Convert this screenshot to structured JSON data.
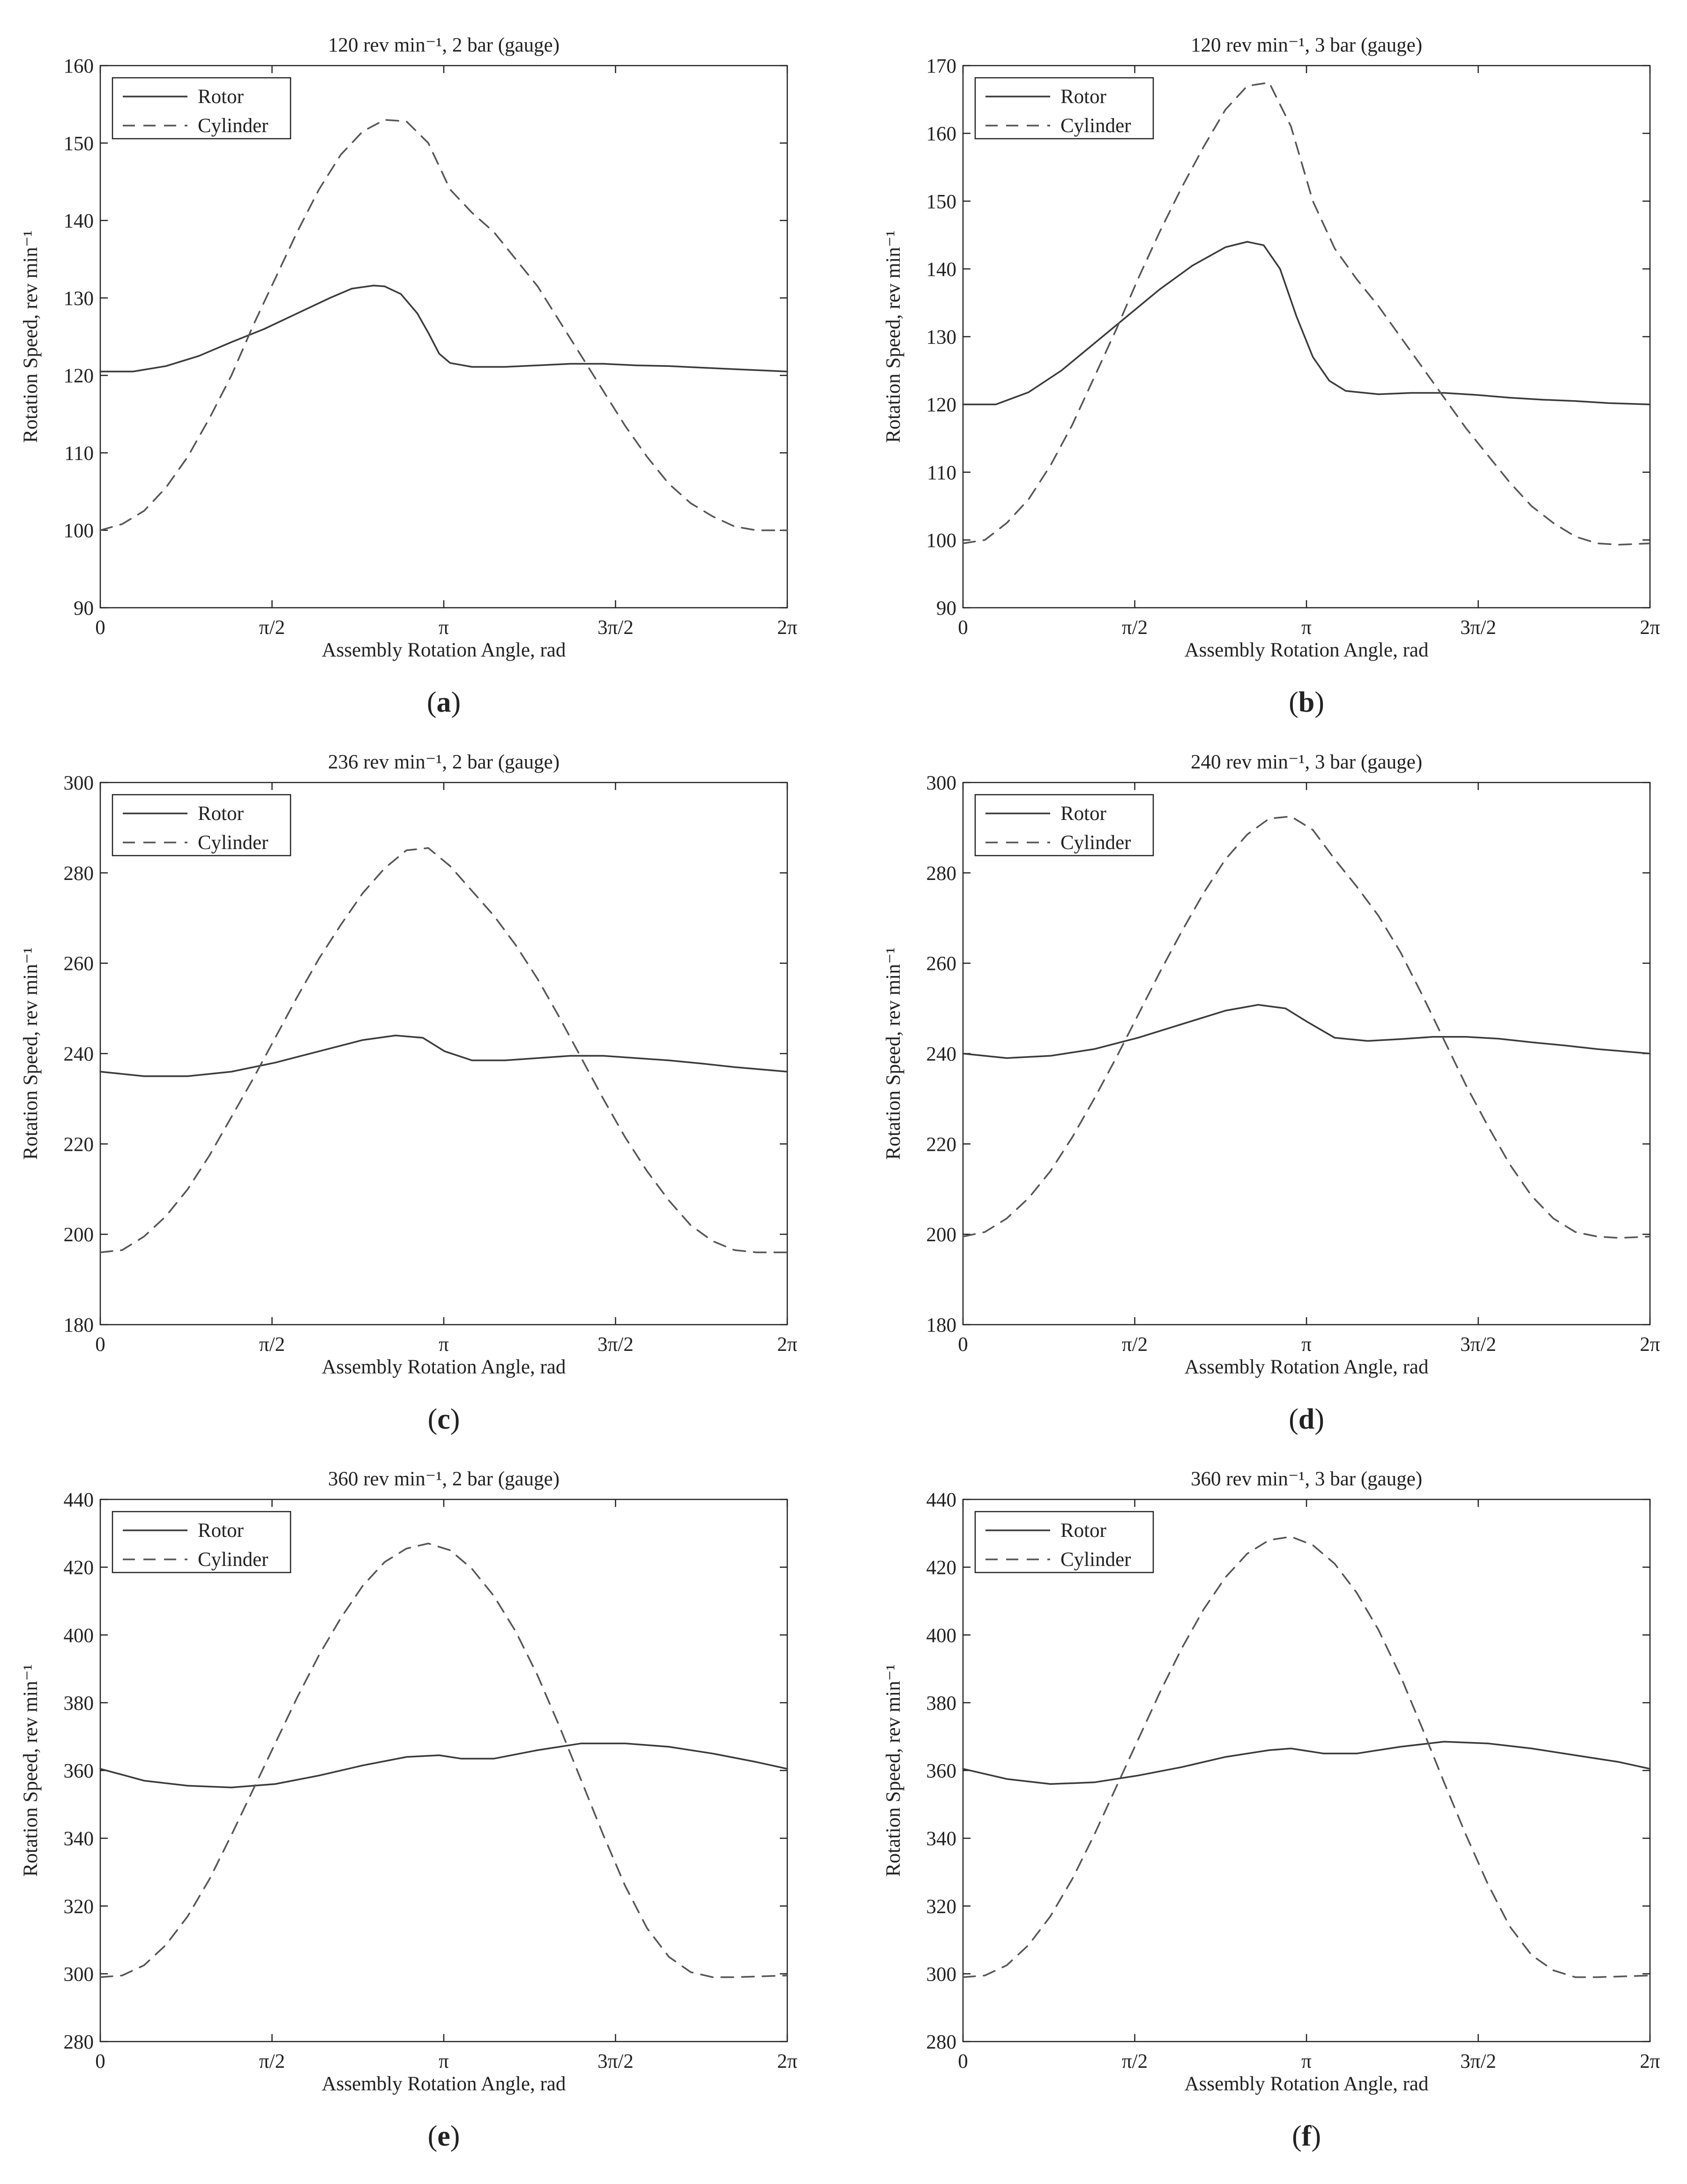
{
  "figure": {
    "x_axis_label": "Assembly Rotation Angle, rad",
    "y_axis_label": "Rotation Speed, rev min⁻¹",
    "x_tick_labels": [
      "0",
      "π/2",
      "π",
      "3π/2",
      "2π"
    ],
    "legend_entries": [
      "Rotor",
      "Cylinder"
    ],
    "colors": {
      "rotor": "#3a3a3a",
      "cylinder": "#555555",
      "axes": "#222222",
      "background": "#ffffff"
    }
  },
  "chart_data": [
    {
      "panel_label": "a",
      "type": "line",
      "title": "120 rev min⁻¹, 2 bar (gauge)",
      "xlabel": "Assembly Rotation Angle, rad",
      "ylabel": "Rotation Speed, rev min⁻¹",
      "x_tick_labels": [
        "0",
        "π/2",
        "π",
        "3π/2",
        "2π"
      ],
      "xlim": [
        0,
        6.2832
      ],
      "ylim": [
        90,
        160
      ],
      "yticks": [
        90,
        100,
        110,
        120,
        130,
        140,
        150,
        160
      ],
      "legend_position": "top-left",
      "series": [
        {
          "name": "Rotor",
          "style": "solid",
          "x": [
            0,
            0.3,
            0.6,
            0.9,
            1.2,
            1.5,
            1.8,
            2.1,
            2.3,
            2.5,
            2.6,
            2.75,
            2.9,
            3.0,
            3.1,
            3.2,
            3.4,
            3.7,
            4.0,
            4.3,
            4.6,
            4.9,
            5.2,
            5.5,
            5.8,
            6.2832
          ],
          "y": [
            120.5,
            120.5,
            121.2,
            122.5,
            124.3,
            126.0,
            128.0,
            130.0,
            131.2,
            131.6,
            131.5,
            130.5,
            128.0,
            125.5,
            122.8,
            121.6,
            121.1,
            121.1,
            121.3,
            121.5,
            121.5,
            121.3,
            121.2,
            121.0,
            120.8,
            120.5
          ]
        },
        {
          "name": "Cylinder",
          "style": "dashed",
          "x": [
            0,
            0.2,
            0.4,
            0.6,
            0.8,
            1.0,
            1.2,
            1.4,
            1.6,
            1.8,
            2.0,
            2.2,
            2.4,
            2.6,
            2.8,
            3.0,
            3.2,
            3.4,
            3.6,
            3.8,
            4.0,
            4.2,
            4.4,
            4.6,
            4.8,
            5.0,
            5.2,
            5.4,
            5.6,
            5.8,
            6.0,
            6.2832
          ],
          "y": [
            100.0,
            100.8,
            102.5,
            105.5,
            109.5,
            114.5,
            120.0,
            126.5,
            132.5,
            138.5,
            144.0,
            148.5,
            151.5,
            153.0,
            152.8,
            150.0,
            144.0,
            141.0,
            138.5,
            135.0,
            131.5,
            127.0,
            122.5,
            118.0,
            113.5,
            109.5,
            106.0,
            103.5,
            101.8,
            100.5,
            100.0,
            100.0
          ]
        }
      ]
    },
    {
      "panel_label": "b",
      "type": "line",
      "title": "120 rev min⁻¹, 3 bar (gauge)",
      "xlabel": "Assembly Rotation Angle, rad",
      "ylabel": "Rotation Speed, rev min⁻¹",
      "x_tick_labels": [
        "0",
        "π/2",
        "π",
        "3π/2",
        "2π"
      ],
      "xlim": [
        0,
        6.2832
      ],
      "ylim": [
        90,
        170
      ],
      "yticks": [
        90,
        100,
        110,
        120,
        130,
        140,
        150,
        160,
        170
      ],
      "legend_position": "top-left",
      "series": [
        {
          "name": "Rotor",
          "style": "solid",
          "x": [
            0,
            0.3,
            0.6,
            0.9,
            1.2,
            1.5,
            1.8,
            2.1,
            2.4,
            2.6,
            2.75,
            2.9,
            3.05,
            3.2,
            3.35,
            3.5,
            3.8,
            4.1,
            4.4,
            4.7,
            5.0,
            5.3,
            5.6,
            5.9,
            6.2832
          ],
          "y": [
            120.0,
            120.0,
            121.8,
            125.0,
            129.0,
            133.0,
            137.0,
            140.5,
            143.2,
            144.0,
            143.5,
            140.0,
            133.0,
            127.0,
            123.5,
            122.0,
            121.5,
            121.7,
            121.7,
            121.4,
            121.0,
            120.7,
            120.5,
            120.2,
            120.0
          ]
        },
        {
          "name": "Cylinder",
          "style": "dashed",
          "x": [
            0,
            0.2,
            0.4,
            0.6,
            0.8,
            1.0,
            1.2,
            1.4,
            1.6,
            1.8,
            2.0,
            2.2,
            2.4,
            2.6,
            2.8,
            3.0,
            3.2,
            3.4,
            3.6,
            3.8,
            4.0,
            4.2,
            4.4,
            4.6,
            4.8,
            5.0,
            5.2,
            5.4,
            5.6,
            5.8,
            6.0,
            6.2832
          ],
          "y": [
            99.5,
            100.0,
            102.5,
            106.0,
            111.0,
            117.0,
            124.0,
            131.0,
            138.5,
            145.5,
            152.0,
            158.0,
            163.5,
            167.0,
            167.5,
            161.0,
            150.0,
            143.0,
            138.5,
            134.5,
            130.0,
            125.5,
            121.0,
            116.5,
            112.5,
            108.5,
            105.0,
            102.5,
            100.5,
            99.5,
            99.3,
            99.5
          ]
        }
      ]
    },
    {
      "panel_label": "c",
      "type": "line",
      "title": "236 rev min⁻¹, 2 bar (gauge)",
      "xlabel": "Assembly Rotation Angle, rad",
      "ylabel": "Rotation Speed, rev min⁻¹",
      "x_tick_labels": [
        "0",
        "π/2",
        "π",
        "3π/2",
        "2π"
      ],
      "xlim": [
        0,
        6.2832
      ],
      "ylim": [
        180,
        300
      ],
      "yticks": [
        180,
        200,
        220,
        240,
        260,
        280,
        300
      ],
      "legend_position": "top-left",
      "series": [
        {
          "name": "Rotor",
          "style": "solid",
          "x": [
            0,
            0.4,
            0.8,
            1.2,
            1.6,
            2.0,
            2.4,
            2.7,
            2.95,
            3.15,
            3.4,
            3.7,
            4.0,
            4.3,
            4.6,
            4.9,
            5.2,
            5.5,
            5.8,
            6.2832
          ],
          "y": [
            236.0,
            235.0,
            235.0,
            236.0,
            238.0,
            240.5,
            243.0,
            244.0,
            243.5,
            240.5,
            238.5,
            238.5,
            239.0,
            239.5,
            239.5,
            239.0,
            238.5,
            237.8,
            237.0,
            236.0
          ]
        },
        {
          "name": "Cylinder",
          "style": "dashed",
          "x": [
            0,
            0.2,
            0.4,
            0.6,
            0.8,
            1.0,
            1.2,
            1.4,
            1.6,
            1.8,
            2.0,
            2.2,
            2.4,
            2.6,
            2.8,
            3.0,
            3.2,
            3.4,
            3.6,
            3.8,
            4.0,
            4.2,
            4.4,
            4.6,
            4.8,
            5.0,
            5.2,
            5.4,
            5.6,
            5.8,
            6.0,
            6.2832
          ],
          "y": [
            196.0,
            196.5,
            199.5,
            204.0,
            210.0,
            217.5,
            226.0,
            234.5,
            243.5,
            252.5,
            261.0,
            268.5,
            275.5,
            281.0,
            285.0,
            285.5,
            281.5,
            276.0,
            270.5,
            264.0,
            256.5,
            248.0,
            239.0,
            230.0,
            221.5,
            214.0,
            207.5,
            202.0,
            198.5,
            196.5,
            196.0,
            196.0
          ]
        }
      ]
    },
    {
      "panel_label": "d",
      "type": "line",
      "title": "240 rev min⁻¹, 3 bar (gauge)",
      "xlabel": "Assembly Rotation Angle, rad",
      "ylabel": "Rotation Speed, rev min⁻¹",
      "x_tick_labels": [
        "0",
        "π/2",
        "π",
        "3π/2",
        "2π"
      ],
      "xlim": [
        0,
        6.2832
      ],
      "ylim": [
        180,
        300
      ],
      "yticks": [
        180,
        200,
        220,
        240,
        260,
        280,
        300
      ],
      "legend_position": "top-left",
      "series": [
        {
          "name": "Rotor",
          "style": "solid",
          "x": [
            0,
            0.4,
            0.8,
            1.2,
            1.6,
            2.0,
            2.4,
            2.7,
            2.95,
            3.15,
            3.4,
            3.7,
            4.0,
            4.3,
            4.6,
            4.9,
            5.2,
            5.5,
            5.8,
            6.2832
          ],
          "y": [
            240.0,
            239.0,
            239.5,
            241.0,
            243.5,
            246.5,
            249.5,
            250.8,
            250.0,
            247.0,
            243.5,
            242.8,
            243.2,
            243.7,
            243.7,
            243.3,
            242.5,
            241.8,
            241.0,
            240.0
          ]
        },
        {
          "name": "Cylinder",
          "style": "dashed",
          "x": [
            0,
            0.2,
            0.4,
            0.6,
            0.8,
            1.0,
            1.2,
            1.4,
            1.6,
            1.8,
            2.0,
            2.2,
            2.4,
            2.6,
            2.8,
            3.0,
            3.2,
            3.4,
            3.6,
            3.8,
            4.0,
            4.2,
            4.4,
            4.6,
            4.8,
            5.0,
            5.2,
            5.4,
            5.6,
            5.8,
            6.0,
            6.2832
          ],
          "y": [
            199.5,
            200.5,
            203.5,
            208.0,
            214.0,
            221.5,
            230.0,
            239.0,
            248.5,
            258.0,
            267.0,
            275.5,
            283.0,
            288.5,
            292.0,
            292.5,
            289.5,
            283.0,
            277.0,
            270.5,
            262.5,
            253.0,
            243.0,
            233.0,
            224.0,
            215.5,
            208.5,
            203.5,
            200.5,
            199.5,
            199.2,
            199.5
          ]
        }
      ]
    },
    {
      "panel_label": "e",
      "type": "line",
      "title": "360 rev min⁻¹, 2 bar (gauge)",
      "xlabel": "Assembly Rotation Angle, rad",
      "ylabel": "Rotation Speed, rev min⁻¹",
      "x_tick_labels": [
        "0",
        "π/2",
        "π",
        "3π/2",
        "2π"
      ],
      "xlim": [
        0,
        6.2832
      ],
      "ylim": [
        280,
        440
      ],
      "yticks": [
        280,
        300,
        320,
        340,
        360,
        380,
        400,
        420,
        440
      ],
      "legend_position": "top-left",
      "series": [
        {
          "name": "Rotor",
          "style": "solid",
          "x": [
            0,
            0.4,
            0.8,
            1.2,
            1.6,
            2.0,
            2.4,
            2.8,
            3.1,
            3.3,
            3.6,
            4.0,
            4.4,
            4.8,
            5.2,
            5.6,
            6.0,
            6.2832
          ],
          "y": [
            360.5,
            357.0,
            355.5,
            355.0,
            356.0,
            358.5,
            361.5,
            364.0,
            364.5,
            363.5,
            363.5,
            366.0,
            368.0,
            368.0,
            367.0,
            365.0,
            362.5,
            360.5
          ]
        },
        {
          "name": "Cylinder",
          "style": "dashed",
          "x": [
            0,
            0.2,
            0.4,
            0.6,
            0.8,
            1.0,
            1.2,
            1.4,
            1.6,
            1.8,
            2.0,
            2.2,
            2.4,
            2.6,
            2.8,
            3.0,
            3.2,
            3.4,
            3.6,
            3.8,
            4.0,
            4.2,
            4.4,
            4.6,
            4.8,
            5.0,
            5.2,
            5.4,
            5.6,
            5.8,
            6.0,
            6.2832
          ],
          "y": [
            299.0,
            299.5,
            302.5,
            308.5,
            317.0,
            328.0,
            341.0,
            354.5,
            368.0,
            381.5,
            394.0,
            405.0,
            414.5,
            421.5,
            425.5,
            427.0,
            425.0,
            419.5,
            411.5,
            401.0,
            388.0,
            373.0,
            357.0,
            341.0,
            326.0,
            313.5,
            305.0,
            300.5,
            299.0,
            299.0,
            299.2,
            299.5
          ]
        }
      ]
    },
    {
      "panel_label": "f",
      "type": "line",
      "title": "360 rev min⁻¹, 3 bar (gauge)",
      "xlabel": "Assembly Rotation Angle, rad",
      "ylabel": "Rotation Speed, rev min⁻¹",
      "x_tick_labels": [
        "0",
        "π/2",
        "π",
        "3π/2",
        "2π"
      ],
      "xlim": [
        0,
        6.2832
      ],
      "ylim": [
        280,
        440
      ],
      "yticks": [
        280,
        300,
        320,
        340,
        360,
        380,
        400,
        420,
        440
      ],
      "legend_position": "top-left",
      "series": [
        {
          "name": "Rotor",
          "style": "solid",
          "x": [
            0,
            0.4,
            0.8,
            1.2,
            1.6,
            2.0,
            2.4,
            2.8,
            3.0,
            3.3,
            3.6,
            4.0,
            4.4,
            4.8,
            5.2,
            5.6,
            6.0,
            6.2832
          ],
          "y": [
            360.5,
            357.5,
            356.0,
            356.5,
            358.5,
            361.0,
            364.0,
            366.0,
            366.5,
            365.0,
            365.0,
            367.0,
            368.5,
            368.0,
            366.5,
            364.5,
            362.5,
            360.5
          ]
        },
        {
          "name": "Cylinder",
          "style": "dashed",
          "x": [
            0,
            0.2,
            0.4,
            0.6,
            0.8,
            1.0,
            1.2,
            1.4,
            1.6,
            1.8,
            2.0,
            2.2,
            2.4,
            2.6,
            2.8,
            3.0,
            3.2,
            3.4,
            3.6,
            3.8,
            4.0,
            4.2,
            4.4,
            4.6,
            4.8,
            5.0,
            5.2,
            5.4,
            5.6,
            5.8,
            6.0,
            6.2832
          ],
          "y": [
            299.0,
            299.5,
            302.5,
            308.5,
            317.0,
            328.0,
            341.0,
            355.0,
            369.0,
            383.0,
            396.0,
            407.5,
            417.0,
            424.0,
            428.0,
            429.0,
            426.5,
            421.0,
            412.5,
            401.5,
            388.0,
            372.5,
            356.5,
            341.0,
            326.5,
            314.0,
            305.5,
            301.0,
            299.0,
            299.0,
            299.2,
            299.5
          ]
        }
      ]
    }
  ]
}
